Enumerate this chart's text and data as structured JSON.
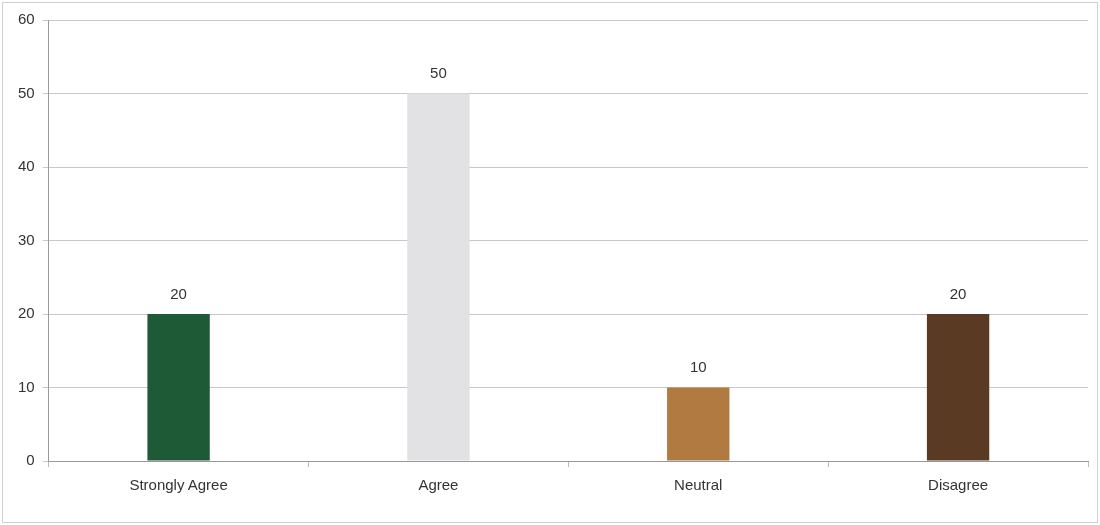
{
  "chart_data": {
    "type": "bar",
    "categories": [
      "Strongly Agree",
      "Agree",
      "Neutral",
      "Disagree"
    ],
    "values": [
      20,
      50,
      10,
      20
    ],
    "colors": [
      "#1f5a36",
      "#e2e2e4",
      "#b07a40",
      "#5a3a22"
    ],
    "ylim": [
      0,
      60
    ],
    "yticks": [
      0,
      10,
      20,
      30,
      40,
      50,
      60
    ],
    "grid": "y",
    "legend": false,
    "data_labels": true
  }
}
